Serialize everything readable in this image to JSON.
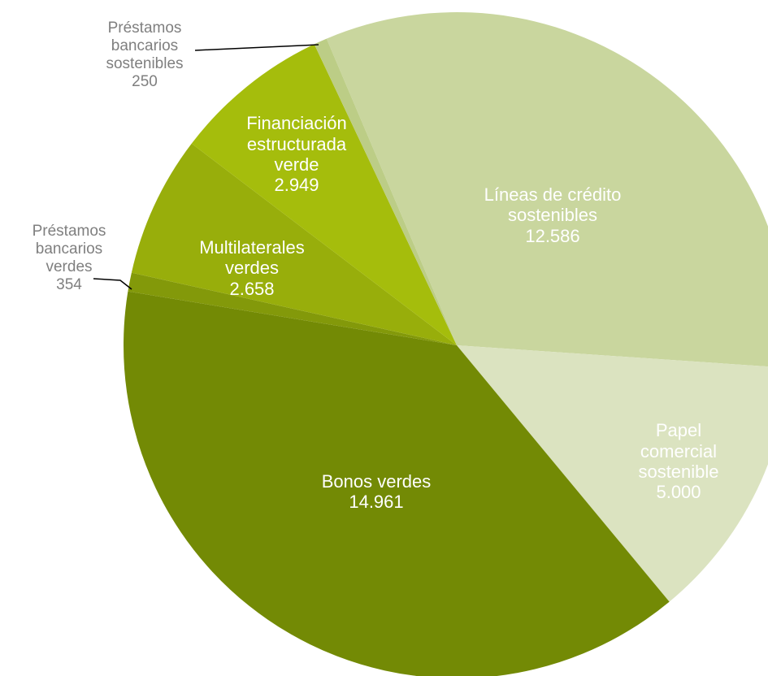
{
  "chart_data": {
    "type": "pie",
    "categories": [
      "Líneas de crédito sostenibles",
      "Papel comercial sostenible",
      "Bonos verdes",
      "Préstamos bancarios verdes",
      "Multilaterales verdes",
      "Financiación estructurada verde",
      "Préstamos bancarios sostenibles"
    ],
    "values": [
      12586,
      5000,
      14961,
      354,
      2658,
      2949,
      250
    ],
    "value_labels": [
      "12.586",
      "5.000",
      "14.961",
      "354",
      "2.658",
      "2.949",
      "250"
    ],
    "colors": [
      "#c9d69e",
      "#dbe3c0",
      "#738a05",
      "#83990a",
      "#98ae0b",
      "#a5bd0c",
      "#bccd86"
    ]
  }
}
